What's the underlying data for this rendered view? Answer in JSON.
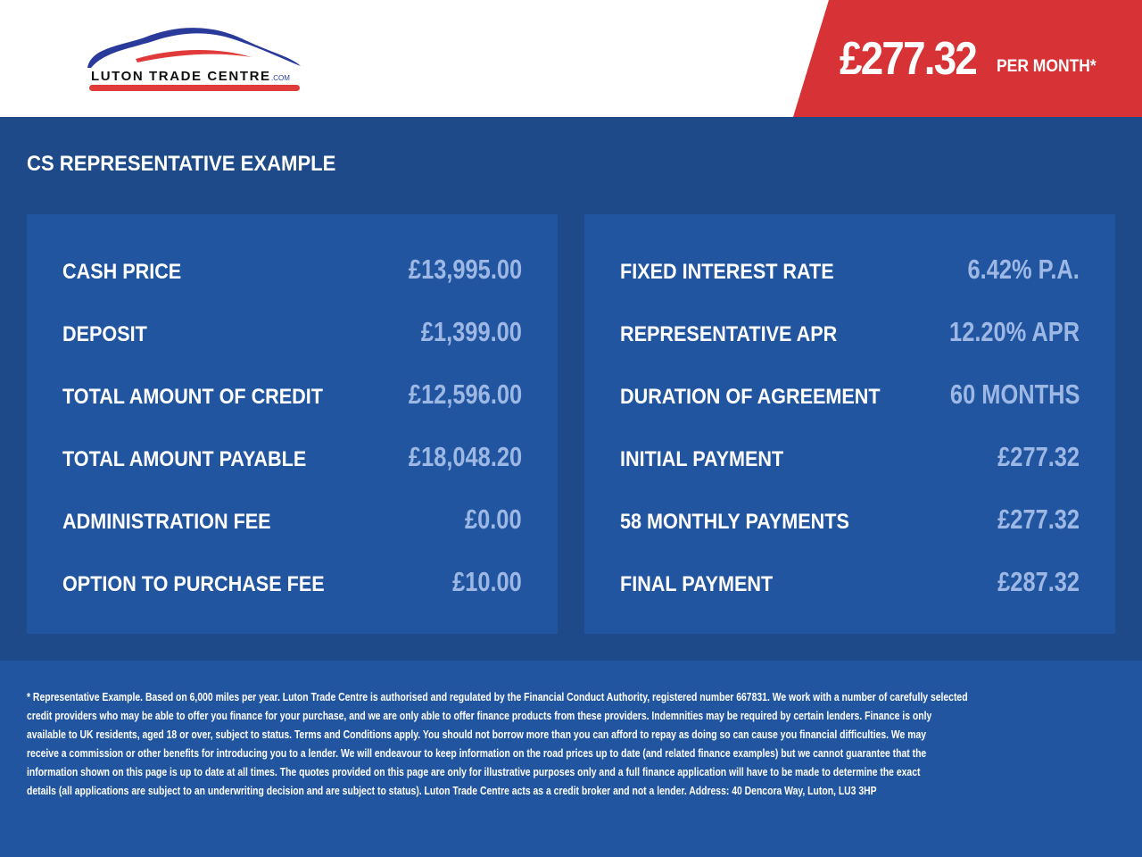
{
  "header": {
    "logo_text": "LUTON TRADE CENTRE.COM",
    "price": "£277.32",
    "price_suffix": "PER MONTH*"
  },
  "section_title": "CS REPRESENTATIVE EXAMPLE",
  "left_panel": [
    {
      "label": "CASH PRICE",
      "value": "£13,995.00"
    },
    {
      "label": "DEPOSIT",
      "value": "£1,399.00"
    },
    {
      "label": "TOTAL AMOUNT OF CREDIT",
      "value": "£12,596.00"
    },
    {
      "label": "TOTAL AMOUNT PAYABLE",
      "value": "£18,048.20"
    },
    {
      "label": "ADMINISTRATION FEE",
      "value": "£0.00"
    },
    {
      "label": "OPTION TO PURCHASE FEE",
      "value": "£10.00"
    }
  ],
  "right_panel": [
    {
      "label": "FIXED INTEREST RATE",
      "value": "6.42% P.A."
    },
    {
      "label": "REPRESENTATIVE APR",
      "value": "12.20% APR"
    },
    {
      "label": "DURATION OF AGREEMENT",
      "value": "60 MONTHS"
    },
    {
      "label": "INITIAL PAYMENT",
      "value": "£277.32"
    },
    {
      "label": "58 MONTHLY PAYMENTS",
      "value": "£277.32"
    },
    {
      "label": "FINAL PAYMENT",
      "value": "£287.32"
    }
  ],
  "footer_lines": [
    "* Representative Example. Based on 6,000 miles per year. Luton Trade Centre is authorised and regulated by the Financial Conduct Authority, registered number 667831. We work with a number of carefully selected",
    "credit providers who may be able to offer you finance for your purchase, and we are only able to offer finance products from these providers. Indemnities may be required by certain lenders. Finance is only",
    "available to UK residents, aged 18 or over, subject to status. Terms and Conditions apply. You should not borrow more than you can afford to repay as doing so can cause you financial difficulties. We may",
    "receive a commission or other benefits for introducing you to a lender. We will endeavour to keep information on the road prices up to date (and related finance examples) but we cannot guarantee that the",
    "information shown on this page is up to date at all times. The quotes provided on this page are only for illustrative purposes only and a full finance application will have to be made to determine the exact",
    "details (all applications are subject to an underwriting decision and are subject to status). Luton Trade Centre acts as a credit broker and not a lender. Address: 40 Dencora Way, Luton, LU3 3HP"
  ],
  "colors": {
    "brand_red": "#d73336",
    "brand_blue": "#1e4a8a",
    "panel_blue": "#2255a0",
    "value_blue": "#9db8e4"
  }
}
